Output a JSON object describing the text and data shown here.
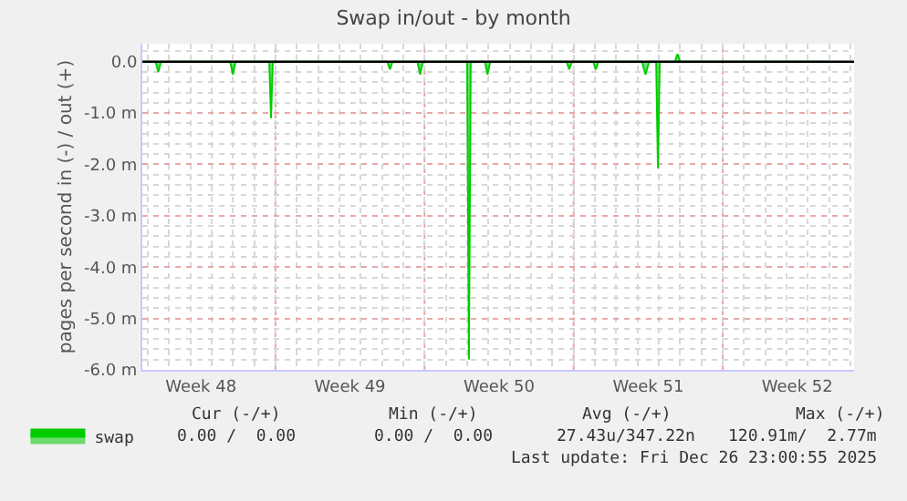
{
  "chart_data": {
    "type": "area",
    "title": "Swap in/out - by month",
    "ylabel": "pages per second in (-) / out (+)",
    "xlim": [
      "2025-11-24T18:00",
      "2025-12-28T04:00"
    ],
    "xticks": [
      {
        "value": "2025-11-27T12:00",
        "label": "Week 48"
      },
      {
        "value": "2025-12-01T00:00",
        "label": null
      },
      {
        "value": "2025-12-04T12:00",
        "label": "Week 49"
      },
      {
        "value": "2025-12-08T00:00",
        "label": null
      },
      {
        "value": "2025-12-11T12:00",
        "label": "Week 50"
      },
      {
        "value": "2025-12-15T00:00",
        "label": null
      },
      {
        "value": "2025-12-18T12:00",
        "label": "Week 51"
      },
      {
        "value": "2025-12-22T00:00",
        "label": null
      },
      {
        "value": "2025-12-25T12:00",
        "label": "Week 52"
      }
    ],
    "ylim": [
      -6,
      0.35
    ],
    "yticks": [
      {
        "value": -6,
        "label": "-6.0 m"
      },
      {
        "value": -5,
        "label": "-5.0 m"
      },
      {
        "value": -4,
        "label": "-4.0 m"
      },
      {
        "value": -3,
        "label": "-3.0 m"
      },
      {
        "value": -2,
        "label": "-2.0 m"
      },
      {
        "value": -1,
        "label": "-1.0 m"
      },
      {
        "value": 0,
        "label": "0.0"
      }
    ],
    "grid": true,
    "legend": "bottom left",
    "ref_lines": [
      {
        "axis": "y",
        "value": 0,
        "label": null,
        "color": "#000000"
      }
    ],
    "series": [
      {
        "name": "swap",
        "color": "#00cc00",
        "x": [
          "2025-11-24T18:00",
          "2025-11-25T09:00",
          "2025-11-25T12:00",
          "2025-11-25T15:00",
          "2025-11-28T21:00",
          "2025-11-29T00:00",
          "2025-11-29T03:00",
          "2025-11-30T17:00",
          "2025-11-30T19:00",
          "2025-11-30T21:00",
          "2025-12-06T06:00",
          "2025-12-06T09:00",
          "2025-12-06T12:00",
          "2025-12-07T16:00",
          "2025-12-07T19:00",
          "2025-12-07T22:00",
          "2025-12-10T00:00",
          "2025-12-10T02:00",
          "2025-12-10T04:00",
          "2025-12-10T20:00",
          "2025-12-10T23:00",
          "2025-12-11T02:00",
          "2025-12-14T16:00",
          "2025-12-14T19:00",
          "2025-12-14T22:00",
          "2025-12-15T22:00",
          "2025-12-16T01:00",
          "2025-12-16T04:00",
          "2025-12-18T05:00",
          "2025-12-18T09:00",
          "2025-12-18T13:00",
          "2025-12-18T21:00",
          "2025-12-18T23:00",
          "2025-12-19T01:00",
          "2025-12-19T18:00",
          "2025-12-19T21:00",
          "2025-12-20T00:00",
          "2025-12-26T23:00"
        ],
        "values": [
          0,
          0,
          -0.2,
          0,
          0,
          -0.25,
          0,
          0,
          -1.1,
          0,
          0,
          -0.15,
          0,
          0,
          -0.25,
          0,
          0,
          -5.8,
          0,
          0,
          -0.25,
          0,
          0,
          -0.15,
          0,
          0,
          -0.15,
          0,
          0,
          -0.25,
          0,
          0,
          -2.07,
          0,
          0,
          0.15,
          0,
          0
        ]
      }
    ],
    "annotations": [
      "Cur (-/+)",
      "Min (-/+)",
      "Avg (-/+)",
      "Max (-/+)",
      "0.00 /  0.00",
      "0.00 /  0.00",
      "27.43u/347.22n",
      "120.91m/  2.77m",
      "Last update: Fri Dec 26 23:00:55 2025"
    ]
  }
}
